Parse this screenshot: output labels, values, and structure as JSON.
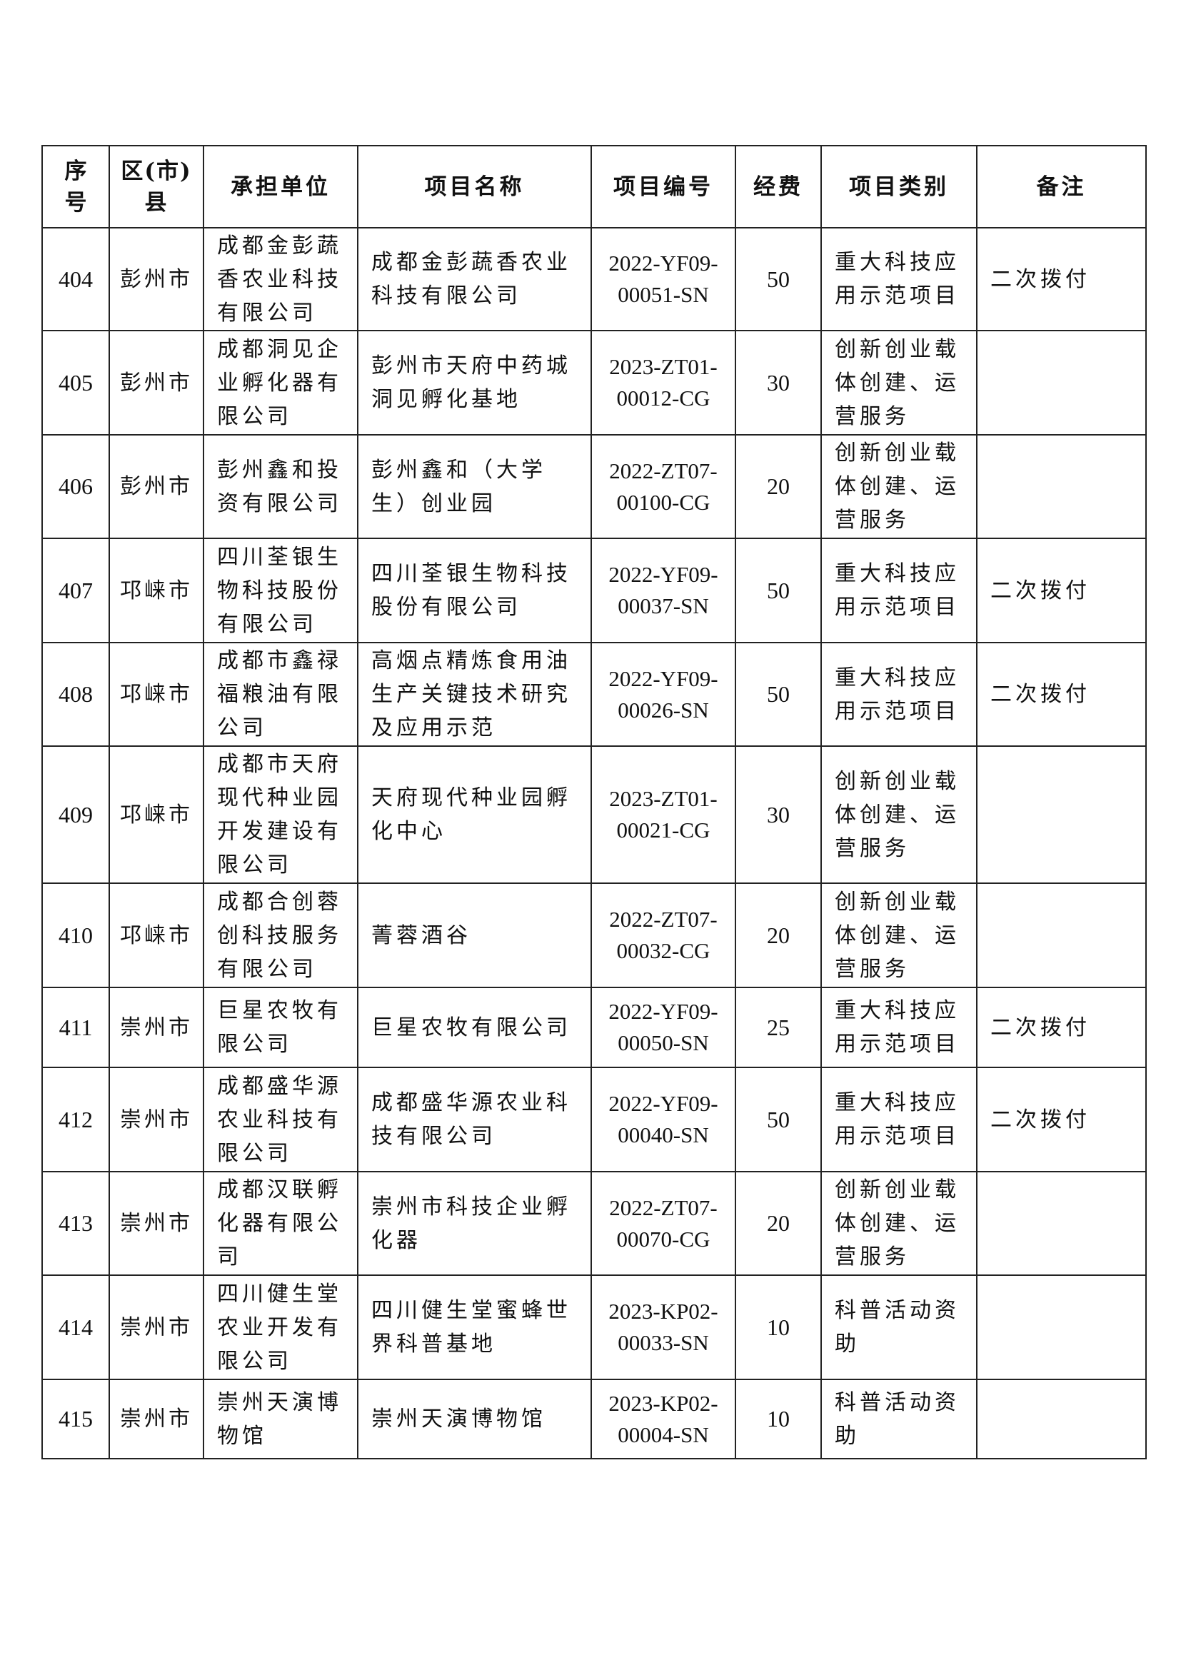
{
  "headers": [
    "序号",
    "区(市)县",
    "承担单位",
    "项目名称",
    "项目编号",
    "经费",
    "项目类别",
    "备注"
  ],
  "rows": [
    {
      "no": "404",
      "district": "彭州市",
      "unit": "成都金彭蔬香农业科技有限公司",
      "project": "成都金彭蔬香农业科技有限公司",
      "code1": "2022-YF09-",
      "code2": "00051-SN",
      "fund": "50",
      "category": "重大科技应用示范项目",
      "remark": "二次拨付"
    },
    {
      "no": "405",
      "district": "彭州市",
      "unit": "成都洞见企业孵化器有限公司",
      "project": "彭州市天府中药城洞见孵化基地",
      "code1": "2023-ZT01-",
      "code2": "00012-CG",
      "fund": "30",
      "category": "创新创业载体创建、运营服务",
      "remark": ""
    },
    {
      "no": "406",
      "district": "彭州市",
      "unit": "彭州鑫和投资有限公司",
      "project": "彭州鑫和（大学生）创业园",
      "code1": "2022-ZT07-",
      "code2": "00100-CG",
      "fund": "20",
      "category": "创新创业载体创建、运营服务",
      "remark": ""
    },
    {
      "no": "407",
      "district": "邛崃市",
      "unit": "四川荃银生物科技股份有限公司",
      "project": "四川荃银生物科技股份有限公司",
      "code1": "2022-YF09-",
      "code2": "00037-SN",
      "fund": "50",
      "category": "重大科技应用示范项目",
      "remark": "二次拨付"
    },
    {
      "no": "408",
      "district": "邛崃市",
      "unit": "成都市鑫禄福粮油有限公司",
      "project": "高烟点精炼食用油生产关键技术研究及应用示范",
      "code1": "2022-YF09-",
      "code2": "00026-SN",
      "fund": "50",
      "category": "重大科技应用示范项目",
      "remark": "二次拨付"
    },
    {
      "no": "409",
      "district": "邛崃市",
      "unit": "成都市天府现代种业园开发建设有限公司",
      "project": "天府现代种业园孵化中心",
      "code1": "2023-ZT01-",
      "code2": "00021-CG",
      "fund": "30",
      "category": "创新创业载体创建、运营服务",
      "remark": ""
    },
    {
      "no": "410",
      "district": "邛崃市",
      "unit": "成都合创蓉创科技服务有限公司",
      "project": "菁蓉酒谷",
      "code1": "2022-ZT07-",
      "code2": "00032-CG",
      "fund": "20",
      "category": "创新创业载体创建、运营服务",
      "remark": ""
    },
    {
      "no": "411",
      "district": "崇州市",
      "unit": "巨星农牧有限公司",
      "project": "巨星农牧有限公司",
      "code1": "2022-YF09-",
      "code2": "00050-SN",
      "fund": "25",
      "category": "重大科技应用示范项目",
      "remark": "二次拨付"
    },
    {
      "no": "412",
      "district": "崇州市",
      "unit": "成都盛华源农业科技有限公司",
      "project": "成都盛华源农业科技有限公司",
      "code1": "2022-YF09-",
      "code2": "00040-SN",
      "fund": "50",
      "category": "重大科技应用示范项目",
      "remark": "二次拨付"
    },
    {
      "no": "413",
      "district": "崇州市",
      "unit": "成都汉联孵化器有限公司",
      "project": "崇州市科技企业孵化器",
      "code1": "2022-ZT07-",
      "code2": "00070-CG",
      "fund": "20",
      "category": "创新创业载体创建、运营服务",
      "remark": ""
    },
    {
      "no": "414",
      "district": "崇州市",
      "unit": "四川健生堂农业开发有限公司",
      "project": "四川健生堂蜜蜂世界科普基地",
      "code1": "2023-KP02-",
      "code2": "00033-SN",
      "fund": "10",
      "category": "科普活动资助",
      "remark": ""
    },
    {
      "no": "415",
      "district": "崇州市",
      "unit": "崇州天演博物馆",
      "project": "崇州天演博物馆",
      "code1": "2023-KP02-",
      "code2": "00004-SN",
      "fund": "10",
      "category": "科普活动资助",
      "remark": ""
    }
  ]
}
